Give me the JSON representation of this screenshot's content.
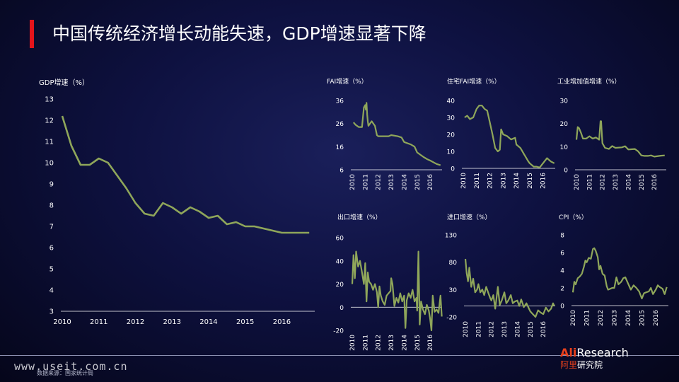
{
  "slide": {
    "title": "中国传统经济增长动能失速，GDP增速显著下降",
    "watermark": "www.useit.com.cn",
    "source": "数据来源：国家统计局",
    "logo": {
      "ali": "Ali",
      "research": "Research",
      "cn_a": "阿里",
      "cn_b": "研究院"
    }
  },
  "colors": {
    "line": "#8fa65a",
    "accent": "#e4141b",
    "axis": "#ffffff"
  },
  "chart_data": [
    {
      "id": "gdp",
      "type": "line",
      "ylabel": "GDP增速（%）",
      "xlabel": "",
      "ylim": [
        3,
        13
      ],
      "yticks": [
        3,
        4,
        5,
        6,
        7,
        8,
        9,
        10,
        11,
        12,
        13
      ],
      "xlim": [
        2010,
        2016.9
      ],
      "xticks": [
        2010,
        2011,
        2012,
        2013,
        2014,
        2015,
        2016
      ],
      "x": [
        2010,
        2010.25,
        2010.5,
        2010.75,
        2011,
        2011.25,
        2011.5,
        2011.75,
        2012,
        2012.25,
        2012.5,
        2012.75,
        2013,
        2013.25,
        2013.5,
        2013.75,
        2014,
        2014.25,
        2014.5,
        2014.75,
        2015,
        2015.25,
        2015.5,
        2015.75,
        2016,
        2016.25,
        2016.5,
        2016.75
      ],
      "values": [
        12.2,
        10.8,
        9.9,
        9.9,
        10.2,
        10.0,
        9.4,
        8.8,
        8.1,
        7.6,
        7.5,
        8.1,
        7.9,
        7.6,
        7.9,
        7.7,
        7.4,
        7.5,
        7.1,
        7.2,
        7.0,
        7.0,
        6.9,
        6.8,
        6.7,
        6.7,
        6.7,
        6.7
      ]
    },
    {
      "id": "fai",
      "type": "line",
      "ylabel": "FAI增速（%）",
      "xlabel": "",
      "ylim": [
        6,
        36
      ],
      "yticks": [
        6,
        16,
        26,
        36
      ],
      "xlim": [
        2010,
        2016.92
      ],
      "xticks": [
        2010,
        2011,
        2012,
        2013,
        2014,
        2015,
        2016
      ],
      "x": [
        2010.1,
        2010.25,
        2010.5,
        2010.75,
        2010.9,
        2011.0,
        2011.05,
        2011.1,
        2011.15,
        2011.2,
        2011.25,
        2011.5,
        2011.75,
        2011.9,
        2012.0,
        2012.5,
        2012.8,
        2013.0,
        2013.5,
        2013.8,
        2014.0,
        2014.5,
        2014.8,
        2015.0,
        2015.5,
        2015.8,
        2016.0,
        2016.5,
        2016.8
      ],
      "values": [
        26.5,
        25.5,
        24.5,
        24.5,
        33,
        34,
        32,
        35,
        30,
        27,
        25,
        27,
        25,
        21,
        20.5,
        20.5,
        20.5,
        21,
        20.5,
        20,
        18,
        17,
        16,
        13.5,
        11.5,
        10.5,
        10,
        8.5,
        8
      ]
    },
    {
      "id": "housing_fai",
      "type": "line",
      "ylabel": "住宅FAI增速（%）",
      "xlabel": "",
      "ylim": [
        0,
        40
      ],
      "yticks": [
        0,
        10,
        20,
        30,
        40
      ],
      "xlim": [
        2010,
        2016.92
      ],
      "xticks": [
        2010,
        2011,
        2012,
        2013,
        2014,
        2015,
        2016
      ],
      "x": [
        2010.1,
        2010.3,
        2010.5,
        2010.75,
        2011.0,
        2011.2,
        2011.4,
        2011.6,
        2011.8,
        2012.0,
        2012.2,
        2012.4,
        2012.6,
        2012.75,
        2012.85,
        2013.0,
        2013.3,
        2013.6,
        2013.9,
        2014.0,
        2014.3,
        2014.6,
        2014.9,
        2015.0,
        2015.3,
        2015.5,
        2015.75,
        2016.0,
        2016.3,
        2016.6,
        2016.85
      ],
      "values": [
        30,
        31,
        29,
        30,
        35,
        37,
        37,
        35,
        34,
        27,
        20,
        12,
        10,
        11,
        23,
        20,
        19,
        17,
        18,
        14,
        12,
        8,
        4,
        3,
        1,
        1,
        0.5,
        3,
        6,
        4,
        3
      ]
    },
    {
      "id": "industrial",
      "type": "line",
      "ylabel": "工业增加值增速（%）",
      "xlabel": "",
      "ylim": [
        0,
        30
      ],
      "yticks": [
        0,
        10,
        20,
        30
      ],
      "xlim": [
        2010,
        2016.92
      ],
      "xticks": [
        2010,
        2011,
        2012,
        2013,
        2014,
        2015,
        2016
      ],
      "x": [
        2010.0,
        2010.1,
        2010.2,
        2010.35,
        2010.5,
        2010.75,
        2011.0,
        2011.25,
        2011.5,
        2011.75,
        2011.85,
        2011.9,
        2012.0,
        2012.2,
        2012.5,
        2012.75,
        2013.0,
        2013.5,
        2013.75,
        2014.0,
        2014.5,
        2014.75,
        2015.0,
        2015.25,
        2015.5,
        2015.75,
        2016.0,
        2016.5,
        2016.8
      ],
      "values": [
        13,
        18.5,
        18,
        16,
        13.5,
        13.5,
        14.5,
        13.5,
        14,
        13,
        21,
        21,
        11.5,
        9.5,
        9,
        10.3,
        9.5,
        9.7,
        10.2,
        8.8,
        9,
        8,
        6.2,
        6,
        6,
        6.2,
        5.7,
        6.1,
        6.2
      ]
    },
    {
      "id": "export",
      "type": "line",
      "ylabel": "出口增速（%）",
      "xlabel": "",
      "ylim": [
        -20,
        60
      ],
      "yticks": [
        -20,
        0,
        20,
        40,
        60
      ],
      "xlim": [
        2010,
        2016.92
      ],
      "xticks": [
        2010,
        2011,
        2012,
        2013,
        2014,
        2015,
        2016
      ],
      "x": [
        2010.0,
        2010.1,
        2010.2,
        2010.3,
        2010.45,
        2010.6,
        2010.75,
        2010.9,
        2011.0,
        2011.1,
        2011.2,
        2011.3,
        2011.45,
        2011.6,
        2011.75,
        2011.9,
        2012.0,
        2012.1,
        2012.2,
        2012.35,
        2012.5,
        2012.65,
        2012.8,
        2012.95,
        2013.0,
        2013.1,
        2013.25,
        2013.4,
        2013.55,
        2013.7,
        2013.85,
        2014.0,
        2014.1,
        2014.2,
        2014.35,
        2014.5,
        2014.65,
        2014.8,
        2014.95,
        2015.0,
        2015.1,
        2015.2,
        2015.3,
        2015.45,
        2015.6,
        2015.75,
        2015.9,
        2016.0,
        2016.1,
        2016.2,
        2016.35,
        2016.5,
        2016.65,
        2016.8,
        2016.9
      ],
      "values": [
        20,
        45,
        25,
        48,
        35,
        40,
        30,
        20,
        38,
        5,
        30,
        22,
        20,
        15,
        20,
        13,
        0,
        18,
        10,
        5,
        2,
        10,
        12,
        14,
        25,
        20,
        1,
        8,
        4,
        12,
        5,
        10,
        -18,
        6,
        12,
        8,
        15,
        5,
        8,
        -3,
        48,
        -15,
        5,
        -2,
        -6,
        2,
        -3,
        -10,
        -20,
        10,
        -4,
        -2,
        -5,
        10,
        -8
      ]
    },
    {
      "id": "import",
      "type": "line",
      "ylabel": "进口增速（%）",
      "xlabel": "",
      "ylim": [
        -20,
        130
      ],
      "yticks": [
        -20,
        30,
        80,
        130
      ],
      "xlim": [
        2010,
        2016.92
      ],
      "xticks": [
        2010,
        2011,
        2012,
        2013,
        2014,
        2015,
        2016
      ],
      "x": [
        2010.0,
        2010.1,
        2010.2,
        2010.3,
        2010.45,
        2010.6,
        2010.75,
        2010.9,
        2011.0,
        2011.15,
        2011.3,
        2011.45,
        2011.6,
        2011.75,
        2011.9,
        2012.0,
        2012.15,
        2012.3,
        2012.5,
        2012.65,
        2012.8,
        2013.0,
        2013.15,
        2013.3,
        2013.5,
        2013.65,
        2013.8,
        2014.0,
        2014.15,
        2014.3,
        2014.5,
        2014.7,
        2014.9,
        2015.0,
        2015.2,
        2015.4,
        2015.6,
        2015.8,
        2016.0,
        2016.2,
        2016.4,
        2016.6,
        2016.75,
        2016.85
      ],
      "values": [
        86,
        60,
        45,
        70,
        35,
        50,
        25,
        30,
        40,
        25,
        30,
        20,
        35,
        25,
        15,
        10,
        20,
        -5,
        35,
        2,
        10,
        25,
        5,
        10,
        20,
        5,
        8,
        10,
        0,
        12,
        -2,
        5,
        -5,
        -10,
        -15,
        -20,
        -8,
        -12,
        -15,
        -3,
        -10,
        -5,
        5,
        0
      ]
    },
    {
      "id": "cpi",
      "type": "line",
      "ylabel": "CPI（%）",
      "xlabel": "",
      "ylim": [
        0,
        8
      ],
      "yticks": [
        0,
        2,
        4,
        6,
        8
      ],
      "xlim": [
        2010,
        2016.92
      ],
      "xticks": [
        2010,
        2011,
        2012,
        2013,
        2014,
        2015,
        2016
      ],
      "x": [
        2010.0,
        2010.1,
        2010.2,
        2010.35,
        2010.5,
        2010.65,
        2010.8,
        2010.9,
        2011.0,
        2011.15,
        2011.3,
        2011.45,
        2011.55,
        2011.65,
        2011.8,
        2011.9,
        2012.0,
        2012.15,
        2012.3,
        2012.45,
        2012.55,
        2012.7,
        2012.85,
        2013.0,
        2013.15,
        2013.3,
        2013.5,
        2013.65,
        2013.8,
        2014.0,
        2014.2,
        2014.4,
        2014.6,
        2014.8,
        2015.0,
        2015.15,
        2015.3,
        2015.5,
        2015.65,
        2015.8,
        2016.0,
        2016.15,
        2016.3,
        2016.5,
        2016.65,
        2016.8
      ],
      "values": [
        1.5,
        2.7,
        2.4,
        3.1,
        3.3,
        3.6,
        4.4,
        5.1,
        4.9,
        5.4,
        5.3,
        6.4,
        6.5,
        6.2,
        5.5,
        4.1,
        4.5,
        3.6,
        3.4,
        2.2,
        1.8,
        1.9,
        2.0,
        2.0,
        3.2,
        2.4,
        2.7,
        3.1,
        3.2,
        2.5,
        1.8,
        2.3,
        2.0,
        1.6,
        0.8,
        1.4,
        1.5,
        1.6,
        2.0,
        1.3,
        1.8,
        2.3,
        2.1,
        1.9,
        1.3,
        2.1
      ]
    }
  ]
}
